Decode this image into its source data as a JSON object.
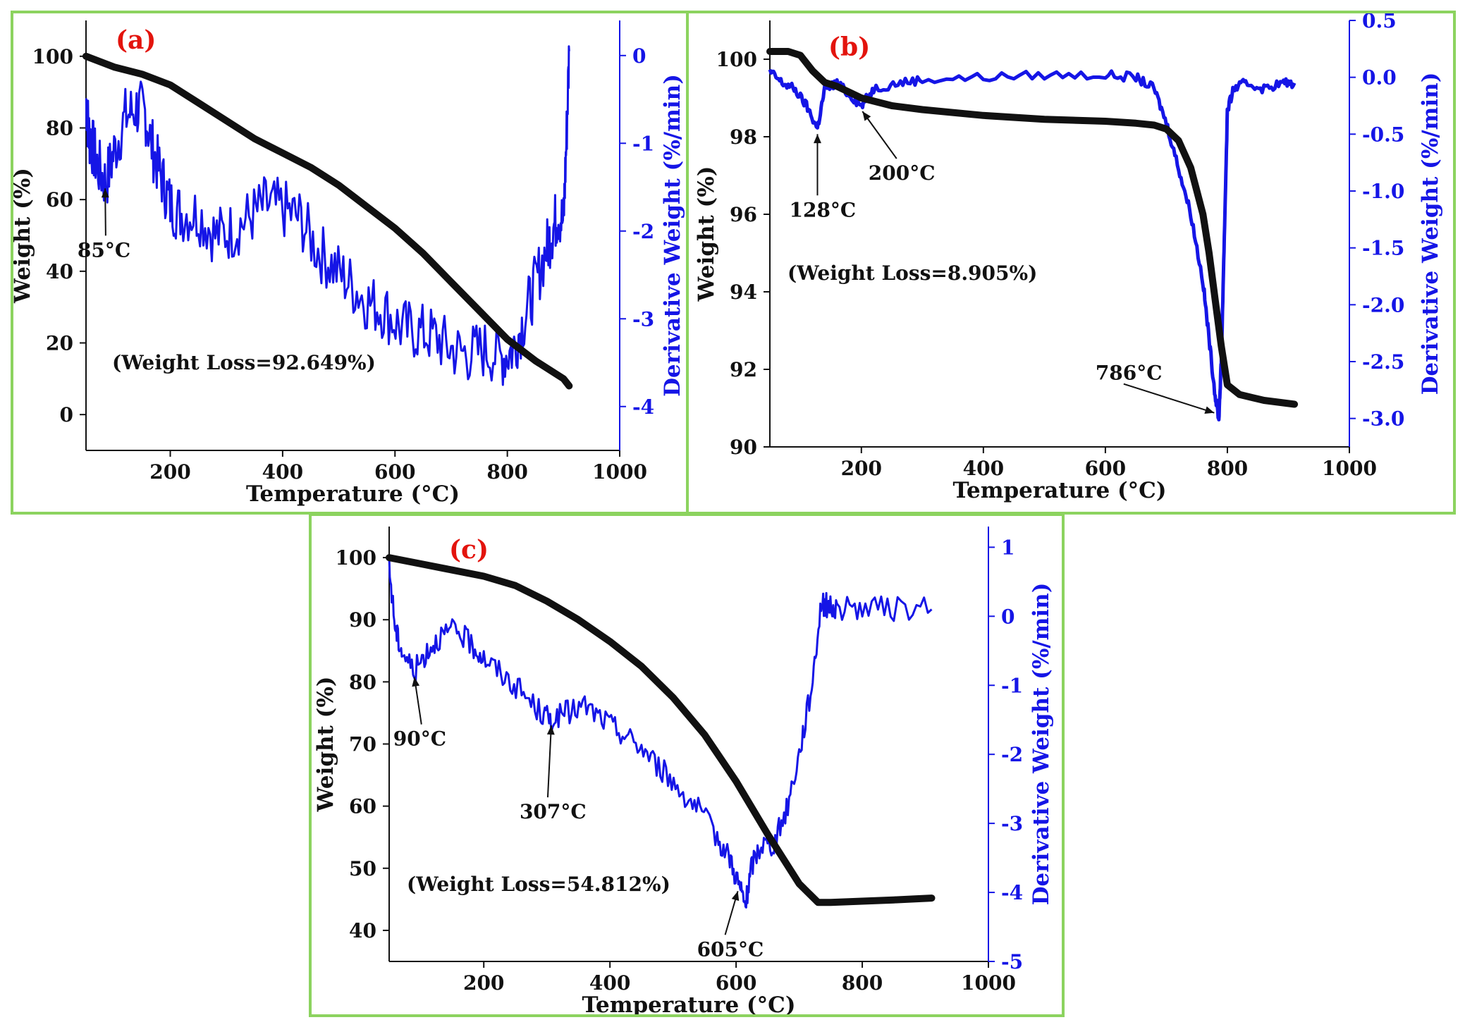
{
  "colors": {
    "weight": "#111111",
    "derivative": "#1515e6",
    "panel_letter": "#e3140d",
    "frame": "#8cd35f"
  },
  "chart_data": [
    {
      "type": "line",
      "panel_label": "(a)",
      "xlabel": "Temperature (°C)",
      "ylabel": "Weight (%)",
      "y2label": "Derivative Weight (%/min)",
      "xlim": [
        50,
        1000
      ],
      "ylim": [
        -10,
        110
      ],
      "y2lim": [
        -4.5,
        0.4
      ],
      "xticks": [
        200,
        400,
        600,
        800,
        1000
      ],
      "yticks": [
        0,
        20,
        40,
        60,
        80,
        100
      ],
      "y2ticks": [
        0,
        -1,
        -2,
        -3,
        -4
      ],
      "weight_series": {
        "name": "Weight",
        "x": [
          50,
          100,
          150,
          200,
          250,
          300,
          350,
          400,
          450,
          500,
          550,
          600,
          650,
          700,
          750,
          800,
          850,
          900,
          910
        ],
        "y": [
          100,
          97,
          95,
          92,
          87,
          82,
          77,
          73,
          69,
          64,
          58,
          52,
          45,
          37,
          29,
          21,
          15,
          10,
          8
        ]
      },
      "derivative_series": {
        "name": "Derivative Weight",
        "x": [
          50,
          55,
          60,
          70,
          85,
          100,
          120,
          140,
          155,
          170,
          185,
          200,
          220,
          250,
          280,
          310,
          340,
          370,
          400,
          430,
          460,
          490,
          520,
          550,
          580,
          610,
          640,
          670,
          700,
          730,
          760,
          790,
          810,
          830,
          850,
          870,
          880,
          890,
          900,
          905,
          910
        ],
        "y": [
          -0.5,
          -0.9,
          -1.0,
          -1.25,
          -1.45,
          -1.1,
          -0.7,
          -0.6,
          -0.65,
          -1.1,
          -1.4,
          -1.7,
          -1.8,
          -1.8,
          -2.05,
          -2.0,
          -1.85,
          -1.7,
          -1.75,
          -1.85,
          -2.2,
          -2.4,
          -2.6,
          -2.8,
          -2.9,
          -3.1,
          -3.15,
          -3.2,
          -3.35,
          -3.4,
          -3.35,
          -3.45,
          -3.35,
          -3.0,
          -2.6,
          -2.2,
          -2.0,
          -1.8,
          -1.9,
          -1.0,
          0.05
        ]
      },
      "annotations": [
        {
          "text": "85°C",
          "x": 85,
          "y2": -1.45
        },
        {
          "text": "(Weight Loss=92.649%)"
        }
      ]
    },
    {
      "type": "line",
      "panel_label": "(b)",
      "xlabel": "Temperature (°C)",
      "ylabel": "Weight (%)",
      "y2label": "Derivative Weight (%/min)",
      "xlim": [
        50,
        1000
      ],
      "ylim": [
        90,
        101
      ],
      "y2lim": [
        -3.25,
        0.5
      ],
      "xticks": [
        200,
        400,
        600,
        800,
        1000
      ],
      "yticks": [
        90,
        92,
        94,
        96,
        98,
        100
      ],
      "y2ticks": [
        "0.5",
        "0.0",
        "-0.5",
        "-1.0",
        "-1.5",
        "-2.0",
        "-2.5",
        "-3.0"
      ],
      "weight_series": {
        "name": "Weight",
        "x": [
          50,
          80,
          100,
          120,
          140,
          160,
          200,
          250,
          300,
          400,
          500,
          600,
          650,
          680,
          700,
          720,
          740,
          760,
          770,
          780,
          790,
          800,
          820,
          860,
          910
        ],
        "y": [
          100.2,
          100.2,
          100.1,
          99.7,
          99.4,
          99.3,
          99.0,
          98.8,
          98.7,
          98.55,
          98.45,
          98.4,
          98.35,
          98.3,
          98.2,
          97.9,
          97.2,
          96.0,
          95.0,
          93.8,
          92.6,
          91.6,
          91.35,
          91.2,
          91.1
        ]
      },
      "derivative_series": {
        "name": "Derivative Weight",
        "x": [
          50,
          70,
          90,
          110,
          128,
          140,
          160,
          180,
          200,
          220,
          260,
          300,
          400,
          500,
          600,
          650,
          680,
          700,
          720,
          740,
          760,
          770,
          780,
          786,
          790,
          795,
          800,
          810,
          830,
          860,
          890,
          910
        ],
        "y": [
          0.05,
          -0.05,
          -0.1,
          -0.25,
          -0.45,
          -0.1,
          -0.05,
          -0.15,
          -0.25,
          -0.1,
          -0.05,
          -0.02,
          0.0,
          0.02,
          0.02,
          0.0,
          -0.1,
          -0.4,
          -0.8,
          -1.2,
          -1.8,
          -2.3,
          -2.8,
          -3.0,
          -2.5,
          -1.4,
          -0.3,
          -0.1,
          -0.05,
          -0.1,
          -0.05,
          -0.05
        ]
      },
      "annotations": [
        {
          "text": "128°C",
          "x": 128,
          "y2": -0.45
        },
        {
          "text": "200°C",
          "x": 200,
          "y2": -0.25
        },
        {
          "text": "786°C",
          "x": 786,
          "y2": -3.0
        },
        {
          "text": "(Weight Loss=8.905%)"
        }
      ]
    },
    {
      "type": "line",
      "panel_label": "(c)",
      "xlabel": "Temperature (°C)",
      "ylabel": "Weight (%)",
      "y2label": "Derivative Weight (%/min)",
      "xlim": [
        50,
        1000
      ],
      "ylim": [
        35,
        105
      ],
      "y2lim": [
        -5,
        1.3
      ],
      "xticks": [
        200,
        400,
        600,
        800,
        1000
      ],
      "yticks": [
        40,
        50,
        60,
        70,
        80,
        90,
        100
      ],
      "y2ticks": [
        1,
        0,
        -1,
        -2,
        -3,
        -4,
        -5
      ],
      "weight_series": {
        "name": "Weight",
        "x": [
          50,
          100,
          150,
          200,
          250,
          300,
          350,
          400,
          450,
          500,
          550,
          600,
          650,
          700,
          730,
          750,
          800,
          850,
          910
        ],
        "y": [
          100,
          99,
          98,
          97,
          95.5,
          93,
          90,
          86.5,
          82.5,
          77.5,
          71.5,
          64,
          55.5,
          47.5,
          44.5,
          44.5,
          44.7,
          44.9,
          45.2
        ]
      },
      "derivative_series": {
        "name": "Derivative Weight",
        "x": [
          50,
          60,
          70,
          90,
          110,
          130,
          155,
          180,
          200,
          230,
          260,
          290,
          307,
          330,
          360,
          390,
          420,
          450,
          480,
          510,
          540,
          570,
          590,
          605,
          615,
          625,
          640,
          660,
          680,
          700,
          720,
          735,
          745,
          760,
          800,
          850,
          910
        ],
        "y": [
          0.7,
          -0.2,
          -0.5,
          -0.8,
          -0.5,
          -0.3,
          -0.2,
          -0.4,
          -0.6,
          -0.85,
          -1.1,
          -1.4,
          -1.5,
          -1.4,
          -1.3,
          -1.5,
          -1.7,
          -1.9,
          -2.2,
          -2.5,
          -2.8,
          -3.2,
          -3.5,
          -3.9,
          -4.2,
          -3.6,
          -3.3,
          -3.3,
          -2.8,
          -2.0,
          -1.0,
          0.2,
          0.15,
          0.1,
          0.12,
          0.1,
          0.1
        ]
      },
      "annotations": [
        {
          "text": "90°C",
          "x": 90,
          "y2": -0.8
        },
        {
          "text": "307°C",
          "x": 307,
          "y2": -1.5
        },
        {
          "text": "605°C",
          "x": 605,
          "y2": -3.9
        },
        {
          "text": "(Weight Loss=54.812%)"
        }
      ]
    }
  ]
}
